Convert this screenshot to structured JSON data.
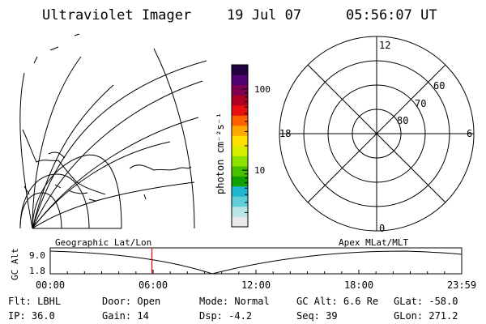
{
  "header": {
    "title": "Ultraviolet Imager",
    "date": "19 Jul 07",
    "time": "05:56:07 UT"
  },
  "colorbar": {
    "label": "photon cm⁻²s⁻¹",
    "ticks": [
      {
        "label": "100",
        "value": 100
      },
      {
        "label": "10",
        "value": 10
      }
    ],
    "range": [
      2,
      200
    ],
    "colors": [
      "#e8e8e8",
      "#b8e6e6",
      "#5fd0d8",
      "#20b8d0",
      "#10a000",
      "#48c000",
      "#90e000",
      "#d8f000",
      "#ffe000",
      "#ffa800",
      "#ff6000",
      "#e81010",
      "#b00020",
      "#800050",
      "#500070",
      "#200040"
    ]
  },
  "polar": {
    "labels": {
      "top": "12",
      "bottom": "0",
      "left": "18",
      "right": "6"
    },
    "rings": [
      {
        "label": "60",
        "lat": 60
      },
      {
        "label": "70",
        "lat": 70
      },
      {
        "label": "80",
        "lat": 80
      }
    ]
  },
  "timeline": {
    "left_title": "Geographic Lat/Lon",
    "right_title": "Apex MLat/MLT",
    "ylabel": "GC Alt",
    "y_ticks": [
      "9.0",
      "1.8"
    ],
    "x_ticks": [
      "00:00",
      "06:00",
      "12:00",
      "18:00",
      "23:59"
    ],
    "current_time_hours": 5.935,
    "marker_color": "#ff0000"
  },
  "status": {
    "row1": [
      {
        "key": "Flt:",
        "value": "LBHL"
      },
      {
        "key": "Door:",
        "value": "Open"
      },
      {
        "key": "Mode:",
        "value": "Normal"
      },
      {
        "key": "GC Alt:",
        "value": "6.6 Re"
      },
      {
        "key": "GLat:",
        "value": "-58.0"
      }
    ],
    "row2": [
      {
        "key": "IP:",
        "value": "36.0"
      },
      {
        "key": "Gain:",
        "value": "14"
      },
      {
        "key": "Dsp:",
        "value": "-4.2"
      },
      {
        "key": "Seq:",
        "value": "39"
      },
      {
        "key": "GLon:",
        "value": "271.2"
      }
    ]
  }
}
